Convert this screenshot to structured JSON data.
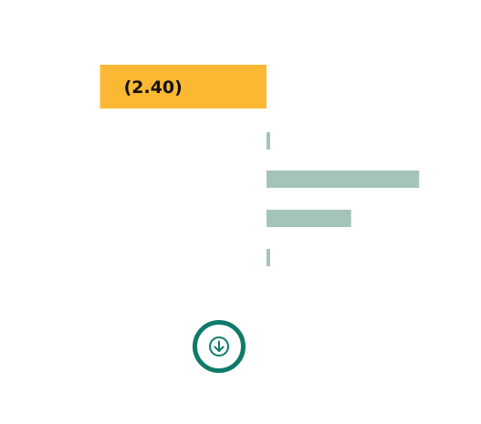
{
  "chart_data": {
    "type": "bar",
    "orientation": "horizontal",
    "series": [
      {
        "values": [
          -2.4,
          0.05,
          2.2,
          1.22,
          0.05
        ],
        "labels": [
          "(2.40)",
          "",
          "",
          "",
          ""
        ]
      }
    ],
    "grid": false,
    "legend": "none",
    "colors": {
      "highlight": "#fbb833",
      "default": "#a5c4b8"
    },
    "highlight_index": 0
  },
  "controls": {
    "scroll_down": {
      "icon": "arrow-down-icon",
      "color": "#0f7a6a"
    }
  }
}
